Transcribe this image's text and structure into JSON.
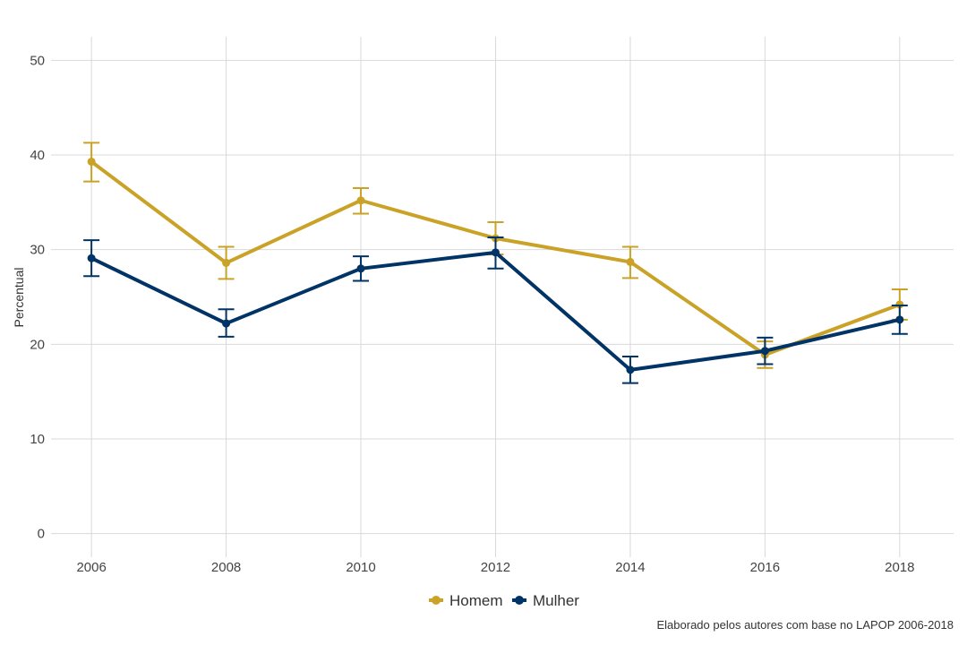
{
  "chart_data": {
    "type": "line",
    "title": "",
    "xlabel": "",
    "ylabel": "Percentual",
    "x": [
      2006,
      2008,
      2010,
      2012,
      2014,
      2016,
      2018
    ],
    "x_ticks": [
      "2006",
      "2008",
      "2010",
      "2012",
      "2014",
      "2016",
      "2018"
    ],
    "y_ticks": [
      "0",
      "10",
      "20",
      "30",
      "40",
      "50"
    ],
    "xlim": [
      2005.4,
      2018.8
    ],
    "ylim": [
      -2.5,
      52.5
    ],
    "grid": true,
    "legend_position": "bottom",
    "caption": "Elaborado pelos autores com base no LAPOP 2006-2018",
    "series": [
      {
        "name": "Homem",
        "color": "#C9A227",
        "values": [
          39.3,
          28.6,
          35.2,
          31.2,
          28.7,
          18.9,
          24.2
        ],
        "error_low": [
          37.2,
          26.9,
          33.8,
          29.5,
          27.0,
          17.5,
          22.6
        ],
        "error_high": [
          41.3,
          30.3,
          36.5,
          32.9,
          30.3,
          20.3,
          25.8
        ]
      },
      {
        "name": "Mulher",
        "color": "#003366",
        "values": [
          29.1,
          22.2,
          28.0,
          29.7,
          17.3,
          19.3,
          22.6
        ],
        "error_low": [
          27.2,
          20.8,
          26.7,
          28.0,
          15.9,
          17.9,
          21.1
        ],
        "error_high": [
          31.0,
          23.7,
          29.3,
          31.3,
          18.7,
          20.7,
          24.1
        ]
      }
    ]
  }
}
